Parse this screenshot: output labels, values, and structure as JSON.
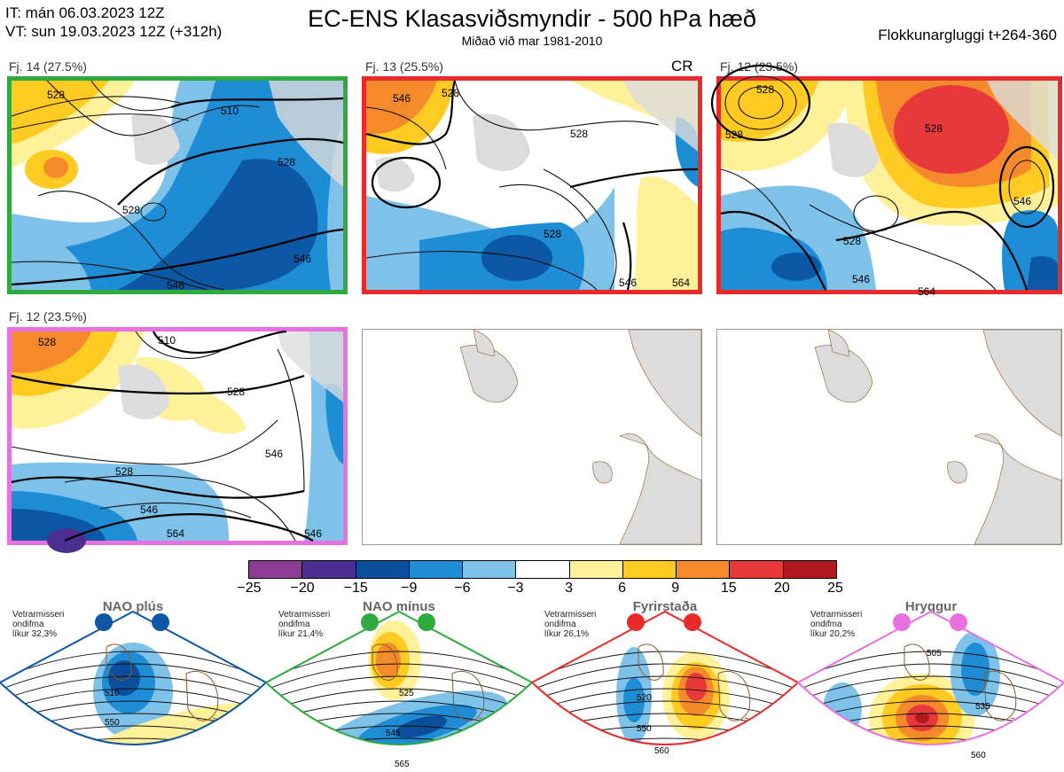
{
  "header": {
    "it_line": "IT: mán 06.03.2023 12Z",
    "vt_line": "VT: sun 19.03.2023 12Z  (+312h)",
    "title": "EC-ENS Klasasviðsmyndir - 500 hPa hæð",
    "subtitle": "Miðað við mar 1981-2010",
    "window": "Flokkunargluggi t+264-360"
  },
  "panels": [
    {
      "label": "Fj. 14 (27.5%)",
      "border": "#2eaa3e",
      "tag": ""
    },
    {
      "label": "Fj. 13 (25.5%)",
      "border": "#e82a2a",
      "tag": "CR"
    },
    {
      "label": "Fj. 12 (23.5%)",
      "border": "#e82a2a",
      "tag": ""
    },
    {
      "label": "Fj. 12 (23.5%)",
      "border": "#e870e0",
      "tag": ""
    }
  ],
  "contour_labels": {
    "p1": [
      "528",
      "510",
      "528",
      "528",
      "546",
      "546"
    ],
    "p2": [
      "546",
      "528",
      "528",
      "528",
      "546",
      "564"
    ],
    "p3": [
      "528",
      "528",
      "528",
      "528",
      "546",
      "546",
      "564"
    ],
    "p4": [
      "528",
      "510",
      "528",
      "528",
      "546",
      "546",
      "564",
      "546"
    ]
  },
  "colorbar": {
    "ticks": [
      "−25",
      "−20",
      "−15",
      "−9",
      "−6",
      "−3",
      "3",
      "6",
      "9",
      "15",
      "20",
      "25"
    ],
    "colors": [
      "#8e3d97",
      "#4b2e8f",
      "#0b4f9c",
      "#1f8dd6",
      "#7ec2ea",
      "#ffffff",
      "#fff19a",
      "#ffcb22",
      "#f58a2c",
      "#e8393a",
      "#b01a1f"
    ]
  },
  "regimes": [
    {
      "title": "NAO plús",
      "note": "Vetrarmisseri\nondifma\nlíkur 32,3%",
      "color": "#0c56a6",
      "contours": [
        "510",
        "550"
      ]
    },
    {
      "title": "NAO mínus",
      "note": "Vetrarmisseri\nondifma\nlíkur 21,4%",
      "color": "#2eaa3e",
      "contours": [
        "525",
        "545",
        "565"
      ]
    },
    {
      "title": "Fyrirstaða",
      "note": "Vetrarmisseri\nondifma\nlíkur 26,1%",
      "color": "#e82a2a",
      "contours": [
        "520",
        "550",
        "560"
      ]
    },
    {
      "title": "Hryggur",
      "note": "Vetrarmisseri\nondifma\nlíkur 20,2%",
      "color": "#e870e0",
      "contours": [
        "505",
        "535",
        "560"
      ]
    }
  ]
}
